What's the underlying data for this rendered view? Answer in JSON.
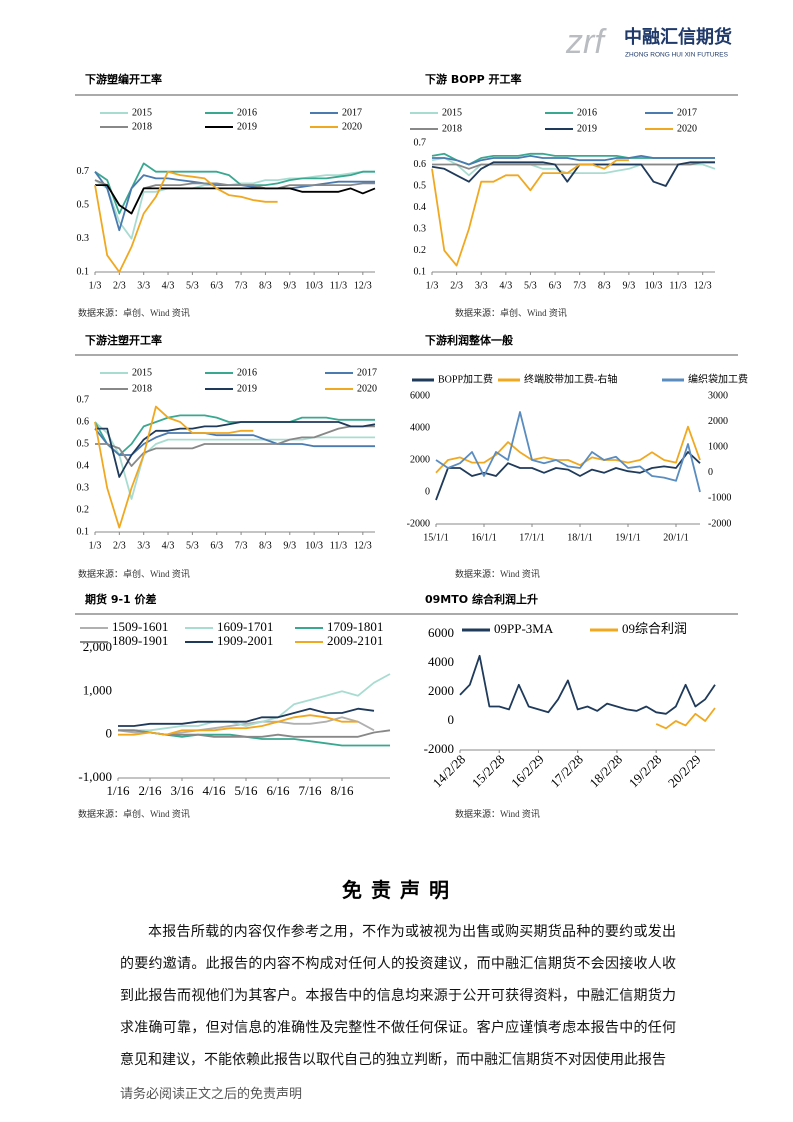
{
  "header": {
    "logo_mark": "zrf",
    "logo_cn": "中融汇信期货",
    "logo_en": "ZHONG RONG HUI XIN FUTURES"
  },
  "chart_data": [
    {
      "type": "line",
      "title": "下游塑编开工率",
      "source": "数据来源：卓创、Wind 资讯",
      "categories": [
        "1/3",
        null,
        "2/3",
        null,
        "3/3",
        null,
        "4/3",
        null,
        "5/3",
        null,
        "6/3",
        null,
        "7/3",
        null,
        "8/3",
        null,
        "9/3",
        null,
        "10/3",
        null,
        "11/3",
        null,
        "12/3",
        null
      ],
      "ylim": [
        0.1,
        0.8
      ],
      "yticks": [
        0.1,
        0.3,
        0.5,
        0.7
      ],
      "series": [
        {
          "name": "2015",
          "color": "#a8dcd1",
          "values": [
            0.65,
            0.6,
            0.4,
            0.3,
            0.58,
            0.58,
            0.6,
            0.6,
            0.6,
            0.62,
            0.62,
            0.62,
            0.63,
            0.63,
            0.65,
            0.65,
            0.66,
            0.66,
            0.67,
            0.68,
            0.68,
            0.69,
            0.7,
            0.7
          ]
        },
        {
          "name": "2016",
          "color": "#3aa890",
          "values": [
            0.7,
            0.65,
            0.45,
            0.6,
            0.75,
            0.7,
            0.7,
            0.7,
            0.7,
            0.7,
            0.7,
            0.68,
            0.62,
            0.62,
            0.62,
            0.63,
            0.65,
            0.66,
            0.66,
            0.66,
            0.67,
            0.68,
            0.7,
            0.7
          ]
        },
        {
          "name": "2017",
          "color": "#4a7ab0",
          "values": [
            0.7,
            0.6,
            0.35,
            0.6,
            0.68,
            0.66,
            0.66,
            0.65,
            0.64,
            0.63,
            0.62,
            0.62,
            0.62,
            0.61,
            0.6,
            0.6,
            0.6,
            0.61,
            0.62,
            0.63,
            0.64,
            0.64,
            0.64,
            0.64
          ]
        },
        {
          "name": "2018",
          "color": "#888888",
          "values": [
            0.65,
            0.62,
            0.5,
            0.45,
            0.6,
            0.62,
            0.62,
            0.62,
            0.63,
            0.63,
            0.63,
            0.62,
            0.62,
            0.62,
            0.6,
            0.6,
            0.62,
            0.62,
            0.62,
            0.62,
            0.62,
            0.62,
            0.63,
            0.63
          ]
        },
        {
          "name": "2019",
          "color": "#000000",
          "values": [
            0.62,
            0.62,
            0.5,
            0.45,
            0.6,
            0.6,
            0.6,
            0.6,
            0.6,
            0.6,
            0.6,
            0.6,
            0.6,
            0.6,
            0.6,
            0.6,
            0.6,
            0.58,
            0.58,
            0.58,
            0.58,
            0.6,
            0.57,
            0.6
          ]
        },
        {
          "name": "2020",
          "color": "#f0a820",
          "values": [
            0.62,
            0.2,
            0.1,
            0.25,
            0.45,
            0.55,
            0.7,
            0.68,
            0.67,
            0.66,
            0.6,
            0.56,
            0.55,
            0.53,
            0.52,
            0.52,
            null,
            null,
            null,
            null,
            null,
            null,
            null,
            null
          ]
        }
      ]
    },
    {
      "type": "line",
      "title": "下游 BOPP 开工率",
      "source": "数据来源：卓创、Wind 资讯",
      "categories": [
        "1/3",
        null,
        "2/3",
        null,
        "3/3",
        null,
        "4/3",
        null,
        "5/3",
        null,
        "6/3",
        null,
        "7/3",
        null,
        "8/3",
        null,
        "9/3",
        null,
        "10/3",
        null,
        "11/3",
        null,
        "12/3",
        null
      ],
      "ylim": [
        0.1,
        0.7
      ],
      "yticks": [
        0.1,
        0.2,
        0.3,
        0.4,
        0.5,
        0.6,
        0.7
      ],
      "series": [
        {
          "name": "2015",
          "color": "#a8dcd1",
          "values": [
            0.62,
            0.63,
            0.6,
            0.55,
            0.6,
            0.6,
            0.6,
            0.6,
            0.6,
            0.58,
            0.58,
            0.56,
            0.56,
            0.56,
            0.56,
            0.57,
            0.58,
            0.6,
            0.6,
            0.6,
            0.6,
            0.6,
            0.6,
            0.58
          ]
        },
        {
          "name": "2016",
          "color": "#3aa890",
          "values": [
            0.64,
            0.65,
            0.62,
            0.6,
            0.63,
            0.64,
            0.64,
            0.64,
            0.65,
            0.65,
            0.64,
            0.64,
            0.64,
            0.64,
            0.64,
            0.64,
            0.63,
            0.63,
            0.63,
            0.63,
            0.63,
            0.63,
            0.63,
            0.63
          ]
        },
        {
          "name": "2017",
          "color": "#4a7ab0",
          "values": [
            0.63,
            0.63,
            0.62,
            0.6,
            0.62,
            0.63,
            0.63,
            0.63,
            0.64,
            0.63,
            0.63,
            0.63,
            0.62,
            0.62,
            0.62,
            0.63,
            0.63,
            0.64,
            0.63,
            0.63,
            0.63,
            0.63,
            0.63,
            0.63
          ]
        },
        {
          "name": "2018",
          "color": "#888888",
          "values": [
            0.6,
            0.6,
            0.6,
            0.58,
            0.6,
            0.6,
            0.6,
            0.6,
            0.6,
            0.6,
            0.6,
            0.6,
            0.6,
            0.6,
            0.6,
            0.6,
            0.6,
            0.6,
            0.6,
            0.6,
            0.6,
            0.6,
            0.61,
            0.61
          ]
        },
        {
          "name": "2019",
          "color": "#1f3a5a",
          "values": [
            0.59,
            0.58,
            0.55,
            0.52,
            0.58,
            0.61,
            0.61,
            0.61,
            0.61,
            0.61,
            0.6,
            0.52,
            0.6,
            0.6,
            0.6,
            0.6,
            0.6,
            0.6,
            0.52,
            0.5,
            0.6,
            0.61,
            0.61,
            0.61
          ]
        },
        {
          "name": "2020",
          "color": "#f0a820",
          "values": [
            0.58,
            0.2,
            0.13,
            0.3,
            0.52,
            0.52,
            0.55,
            0.55,
            0.48,
            0.56,
            0.56,
            0.56,
            0.6,
            0.6,
            0.58,
            0.62,
            0.62,
            null,
            null,
            null,
            null,
            null,
            null,
            null
          ]
        }
      ]
    },
    {
      "type": "line",
      "title": "下游注塑开工率",
      "source": "数据来源：卓创、Wind 资讯",
      "categories": [
        "1/3",
        null,
        "2/3",
        null,
        "3/3",
        null,
        "4/3",
        null,
        "5/3",
        null,
        "6/3",
        null,
        "7/3",
        null,
        "8/3",
        null,
        "9/3",
        null,
        "10/3",
        null,
        "11/3",
        null,
        "12/3",
        null
      ],
      "ylim": [
        0.1,
        0.7
      ],
      "yticks": [
        0.1,
        0.2,
        0.3,
        0.4,
        0.5,
        0.6,
        0.7
      ],
      "series": [
        {
          "name": "2015",
          "color": "#a8dcd1",
          "values": [
            0.6,
            0.55,
            0.45,
            0.25,
            0.45,
            0.5,
            0.52,
            0.52,
            0.52,
            0.52,
            0.52,
            0.52,
            0.52,
            0.52,
            0.52,
            0.52,
            0.52,
            0.52,
            0.53,
            0.53,
            0.53,
            0.53,
            0.53,
            0.53
          ]
        },
        {
          "name": "2016",
          "color": "#3aa890",
          "values": [
            0.6,
            0.5,
            0.45,
            0.5,
            0.58,
            0.6,
            0.62,
            0.63,
            0.63,
            0.63,
            0.62,
            0.6,
            0.6,
            0.6,
            0.6,
            0.6,
            0.6,
            0.62,
            0.62,
            0.62,
            0.61,
            0.61,
            0.61,
            0.61
          ]
        },
        {
          "name": "2017",
          "color": "#4a7ab0",
          "values": [
            0.57,
            0.5,
            0.45,
            0.45,
            0.5,
            0.53,
            0.55,
            0.55,
            0.55,
            0.55,
            0.54,
            0.54,
            0.54,
            0.54,
            0.52,
            0.5,
            0.5,
            0.5,
            0.49,
            0.49,
            0.49,
            0.49,
            0.49,
            0.49
          ]
        },
        {
          "name": "2018",
          "color": "#888888",
          "values": [
            0.5,
            0.5,
            0.48,
            0.4,
            0.46,
            0.48,
            0.48,
            0.48,
            0.48,
            0.5,
            0.5,
            0.5,
            0.5,
            0.5,
            0.5,
            0.5,
            0.52,
            0.53,
            0.53,
            0.55,
            0.57,
            0.58,
            0.58,
            0.58
          ]
        },
        {
          "name": "2019",
          "color": "#1f3a5a",
          "values": [
            0.57,
            0.57,
            0.35,
            0.45,
            0.52,
            0.56,
            0.56,
            0.57,
            0.57,
            0.58,
            0.58,
            0.59,
            0.6,
            0.6,
            0.6,
            0.6,
            0.6,
            0.6,
            0.6,
            0.6,
            0.6,
            0.58,
            0.58,
            0.59
          ]
        },
        {
          "name": "2020",
          "color": "#f0a820",
          "values": [
            0.6,
            0.3,
            0.12,
            0.3,
            0.45,
            0.67,
            0.62,
            0.6,
            0.55,
            0.55,
            0.55,
            0.55,
            0.56,
            0.56,
            null,
            null,
            null,
            null,
            null,
            null,
            null,
            null,
            null,
            null
          ]
        }
      ]
    },
    {
      "type": "line",
      "title": "下游利润整体一般",
      "source": "数据来源：Wind 资讯",
      "categories": [
        "15/1/1",
        null,
        null,
        null,
        "16/1/1",
        null,
        null,
        null,
        "17/1/1",
        null,
        null,
        null,
        "18/1/1",
        null,
        null,
        null,
        "19/1/1",
        null,
        null,
        null,
        "20/1/1",
        null,
        null
      ],
      "ylim": [
        -2000,
        6000
      ],
      "yticks": [
        -2000,
        0,
        2000,
        4000,
        6000
      ],
      "y2lim": [
        -2000,
        3000
      ],
      "y2ticks": [
        -2000,
        -1000,
        0,
        1000,
        2000,
        3000
      ],
      "series": [
        {
          "name": "BOPP加工费",
          "color": "#1f3a5a",
          "values": [
            -500,
            1500,
            1500,
            1000,
            1200,
            1000,
            1800,
            1500,
            1500,
            1200,
            1500,
            1400,
            1000,
            1400,
            1200,
            1500,
            1300,
            1200,
            1500,
            1600,
            1500,
            2500,
            1800
          ]
        },
        {
          "name": "终端胶带加工费-右轴",
          "color": "#f0a820",
          "axis": "y2",
          "values": [
            0,
            500,
            600,
            400,
            400,
            700,
            1200,
            800,
            500,
            600,
            500,
            500,
            300,
            600,
            500,
            500,
            400,
            500,
            800,
            500,
            400,
            1800,
            500
          ]
        },
        {
          "name": "编织袋加工费",
          "color": "#5a8cbf",
          "values": [
            2000,
            1500,
            1800,
            2500,
            1000,
            2500,
            2000,
            5000,
            2000,
            1800,
            2000,
            1600,
            1500,
            2500,
            2000,
            2200,
            1500,
            1600,
            1000,
            900,
            700,
            3000,
            0
          ]
        }
      ]
    },
    {
      "type": "line",
      "title": "期货 9-1 价差",
      "source": "数据来源：卓创、Wind 资讯",
      "categories": [
        "1/16",
        null,
        "2/16",
        null,
        "3/16",
        null,
        "4/16",
        null,
        "5/16",
        null,
        "6/16",
        null,
        "7/16",
        null,
        "8/16",
        null,
        null,
        null
      ],
      "ylim": [
        -1000,
        2000
      ],
      "yticks": [
        {
          "value": -1000,
          "label": "-1,000"
        },
        0,
        {
          "value": 1000,
          "label": "1,000"
        },
        {
          "value": 2000,
          "label": "2,000"
        }
      ],
      "series": [
        {
          "name": "1509-1601",
          "color": "#b0b0b0",
          "values": [
            100,
            50,
            50,
            0,
            50,
            100,
            150,
            200,
            250,
            300,
            300,
            250,
            250,
            300,
            400,
            300,
            100,
            null
          ]
        },
        {
          "name": "1609-1701",
          "color": "#a8dcd1",
          "values": [
            100,
            100,
            100,
            150,
            200,
            200,
            300,
            300,
            200,
            300,
            400,
            700,
            800,
            900,
            1000,
            900,
            1200,
            1400
          ]
        },
        {
          "name": "1709-1801",
          "color": "#3aa890",
          "values": [
            100,
            100,
            50,
            0,
            -50,
            0,
            0,
            0,
            -50,
            -100,
            -100,
            -100,
            -150,
            -200,
            -250,
            -250,
            -250,
            -250
          ]
        },
        {
          "name": "1809-1901",
          "color": "#888888",
          "values": [
            100,
            100,
            50,
            0,
            0,
            0,
            -50,
            -50,
            -50,
            -50,
            0,
            -50,
            -50,
            -50,
            -50,
            -50,
            50,
            100
          ]
        },
        {
          "name": "1909-2001",
          "color": "#1f3a5a",
          "values": [
            200,
            200,
            250,
            250,
            250,
            300,
            300,
            300,
            300,
            400,
            400,
            500,
            600,
            500,
            500,
            600,
            550,
            null
          ]
        },
        {
          "name": "2009-2101",
          "color": "#f0a820",
          "values": [
            0,
            0,
            50,
            0,
            100,
            100,
            100,
            150,
            150,
            200,
            300,
            400,
            450,
            400,
            300,
            300,
            null,
            null
          ]
        }
      ]
    },
    {
      "type": "line",
      "title": "09MTO 综合利润上升",
      "source": "数据来源：Wind 资讯",
      "categories": [
        "14/2/28",
        null,
        null,
        null,
        "15/2/28",
        null,
        null,
        null,
        "16/2/29",
        null,
        null,
        null,
        "17/2/28",
        null,
        null,
        null,
        "18/2/28",
        null,
        null,
        null,
        "19/2/28",
        null,
        null,
        null,
        "20/2/29",
        null,
        null
      ],
      "ylim": [
        -2000,
        6000
      ],
      "yticks": [
        -2000,
        0,
        2000,
        4000,
        6000
      ],
      "series": [
        {
          "name": "09PP-3MA",
          "color": "#1f3a5a",
          "values": [
            1800,
            2500,
            4500,
            1000,
            1000,
            800,
            2500,
            1000,
            800,
            600,
            1500,
            2800,
            800,
            1000,
            700,
            1200,
            1000,
            800,
            700,
            1000,
            600,
            500,
            1000,
            2500,
            1000,
            1500,
            2500
          ]
        },
        {
          "name": "09综合利润",
          "color": "#f0a820",
          "values": [
            null,
            null,
            null,
            null,
            null,
            null,
            null,
            null,
            null,
            null,
            null,
            null,
            null,
            null,
            null,
            null,
            null,
            null,
            null,
            null,
            -200,
            -500,
            0,
            -300,
            500,
            0,
            900
          ]
        }
      ]
    }
  ],
  "disclaimer": {
    "title": "免 责 声 明",
    "paragraph": "本报告所载的内容仅作参考之用，不作为或被视为出售或购买期货品种的要约或发出的要约邀请。此报告的内容不构成对任何人的投资建议，而中融汇信期货不会因接收人收到此报告而视他们为其客户。本报告中的信息均来源于公开可获得资料，中融汇信期货力求准确可靠，但对信息的准确性及完整性不做任何保证。客户应谨慎考虑本报告中的任何意见和建议，不能依赖此报告以取代自己的独立判断，而中融汇信期货不对因使用此报告"
  },
  "footer": "请务必阅读正文之后的免责声明"
}
